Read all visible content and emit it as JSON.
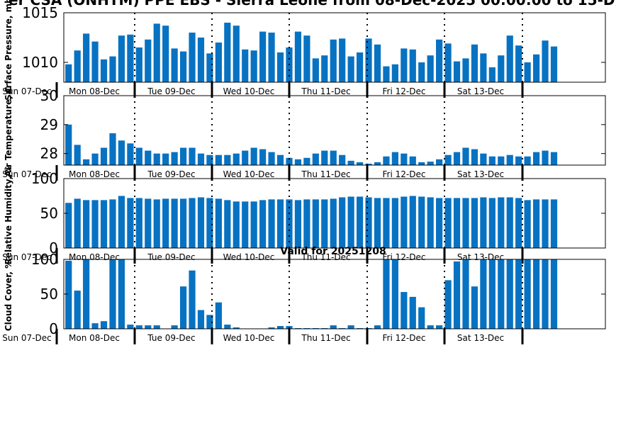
{
  "page": {
    "title": "er CSA (ONHTM) PPE EBS  - Sierra Leone from 08-Dec-2025 00:00:00 to 15-D",
    "valid_label": "Valid for 20251208"
  },
  "colors": {
    "bar": "#0872c2",
    "axis": "#000000",
    "day_separator": "#000000"
  },
  "chart_data": [
    {
      "type": "bar",
      "ylabel": "Surface Pressure, mb",
      "ylim": [
        1008,
        1015
      ],
      "yticks": [
        1010,
        1015
      ],
      "x_day_labels": [
        "Sun 07-Dec",
        "Mon 08-Dec",
        "Tue 09-Dec",
        "Wed 10-Dec",
        "Thu 11-Dec",
        "Fri 12-Dec",
        "Sat 13-Dec"
      ],
      "values": [
        1009.8,
        1011.2,
        1012.9,
        1012.1,
        1010.3,
        1010.6,
        1012.7,
        1012.8,
        1011.5,
        1012.3,
        1013.9,
        1013.7,
        1011.4,
        1011.1,
        1013.0,
        1012.5,
        1010.9,
        1012.0,
        1014.0,
        1013.7,
        1011.3,
        1011.2,
        1013.1,
        1013.0,
        1011.0,
        1011.5,
        1013.1,
        1012.7,
        1010.4,
        1010.7,
        1012.3,
        1012.4,
        1010.6,
        1011.0,
        1012.4,
        1011.8,
        1009.6,
        1009.8,
        1011.4,
        1011.3,
        1010.0,
        1010.7,
        1012.3,
        1011.9,
        1010.1,
        1010.4,
        1011.8,
        1010.9,
        1009.5,
        1010.7,
        1012.7,
        1011.7,
        1010.0,
        1010.8,
        1012.2,
        1011.6
      ]
    },
    {
      "type": "bar",
      "ylabel": "Air Temperature, C",
      "ylim": [
        27.6,
        30
      ],
      "yticks": [
        28,
        29,
        30
      ],
      "x_day_labels": [
        "Sun 07-Dec",
        "Mon 08-Dec",
        "Tue 09-Dec",
        "Wed 10-Dec",
        "Thu 11-Dec",
        "Fri 12-Dec",
        "Sat 13-Dec"
      ],
      "values": [
        29.0,
        28.3,
        27.8,
        28.0,
        28.2,
        28.7,
        28.45,
        28.35,
        28.2,
        28.1,
        28.0,
        28.0,
        28.05,
        28.2,
        28.2,
        28.0,
        27.95,
        27.95,
        27.95,
        28.0,
        28.1,
        28.2,
        28.15,
        28.05,
        27.95,
        27.85,
        27.8,
        27.85,
        28.0,
        28.1,
        28.1,
        27.95,
        27.75,
        27.7,
        27.65,
        27.7,
        27.9,
        28.05,
        28.0,
        27.9,
        27.7,
        27.72,
        27.8,
        27.95,
        28.05,
        28.2,
        28.15,
        28.0,
        27.9,
        27.9,
        27.95,
        27.9,
        27.9,
        28.05,
        28.1,
        28.05
      ]
    },
    {
      "type": "bar",
      "ylabel": "Relative Humidity, %",
      "ylim": [
        0,
        100
      ],
      "yticks": [
        0,
        50,
        100
      ],
      "x_day_labels": [
        "Sun 07-Dec",
        "Mon 08-Dec",
        "Tue 09-Dec",
        "Wed 10-Dec",
        "Thu 11-Dec",
        "Fri 12-Dec",
        "Sat 13-Dec"
      ],
      "values": [
        65,
        71,
        69,
        69,
        69,
        70,
        75,
        72,
        72,
        71,
        70,
        71,
        71,
        71,
        72,
        73,
        72,
        71,
        69,
        67,
        67,
        67,
        69,
        70,
        70,
        70,
        69,
        70,
        70,
        70,
        71,
        73,
        74,
        74,
        73,
        72,
        72,
        72,
        74,
        75,
        74,
        73,
        72,
        72,
        72,
        72,
        72,
        73,
        72,
        73,
        73,
        72,
        69,
        70,
        70,
        70
      ]
    },
    {
      "type": "bar",
      "title": "Valid for 20251208",
      "ylabel": "Cloud Cover, %",
      "ylim": [
        0,
        100
      ],
      "yticks": [
        0,
        50,
        100
      ],
      "x_day_labels": [
        "Sun 07-Dec",
        "Mon 08-Dec",
        "Tue 09-Dec",
        "Wed 10-Dec",
        "Thu 11-Dec",
        "Fri 12-Dec",
        "Sat 13-Dec"
      ],
      "values": [
        98,
        55,
        100,
        8,
        11,
        100,
        100,
        6,
        5,
        5,
        5,
        0,
        5,
        61,
        84,
        27,
        20,
        38,
        6,
        2,
        0,
        0,
        0,
        2,
        4,
        4,
        1,
        1,
        1,
        1,
        5,
        1,
        5,
        1,
        1,
        5,
        100,
        100,
        53,
        46,
        31,
        5,
        5,
        70,
        97,
        100,
        61,
        100,
        100,
        100,
        100,
        100,
        100,
        100,
        100,
        100
      ]
    }
  ]
}
